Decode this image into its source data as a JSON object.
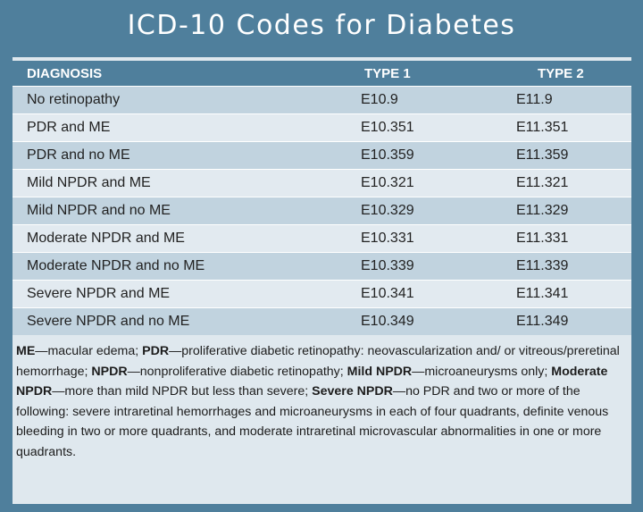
{
  "title": "ICD-10 Codes for Diabetes",
  "table": {
    "headers": [
      "DIAGNOSIS",
      "TYPE 1",
      "TYPE 2"
    ],
    "rows": [
      [
        "No retinopathy",
        "E10.9",
        "E11.9"
      ],
      [
        "PDR and ME",
        "E10.351",
        "E11.351"
      ],
      [
        "PDR and no ME",
        "E10.359",
        "E11.359"
      ],
      [
        "Mild NPDR and ME",
        "E10.321",
        "E11.321"
      ],
      [
        "Mild NPDR and no ME",
        "E10.329",
        "E11.329"
      ],
      [
        "Moderate NPDR and ME",
        "E10.331",
        "E11.331"
      ],
      [
        "Moderate NPDR and no ME",
        "E10.339",
        "E11.339"
      ],
      [
        "Severe NPDR and ME",
        "E10.341",
        "E11.341"
      ],
      [
        "Severe NPDR and no ME",
        "E10.349",
        "E11.349"
      ]
    ]
  },
  "footnote": [
    {
      "term": "ME",
      "definition": "—macular edema; "
    },
    {
      "term": "PDR",
      "definition": "—proliferative diabetic retinopathy: neovascularization and/ or vitreous/preretinal hemorrhage; "
    },
    {
      "term": "NPDR",
      "definition": "—nonproliferative diabetic retinopathy; "
    },
    {
      "term": "Mild NPDR",
      "definition": "—microaneurysms only; "
    },
    {
      "term": "Moderate NPDR",
      "definition": "—more than mild NPDR but less than severe; "
    },
    {
      "term": "Severe NPDR",
      "definition": "—no PDR and two or more of the following: severe intraretinal hemorrhages and microaneurysms in each of four quadrants, definite venous bleeding in two or more quadrants, and moderate intraretinal microvascular abnormalities in one or more quadrants."
    }
  ]
}
